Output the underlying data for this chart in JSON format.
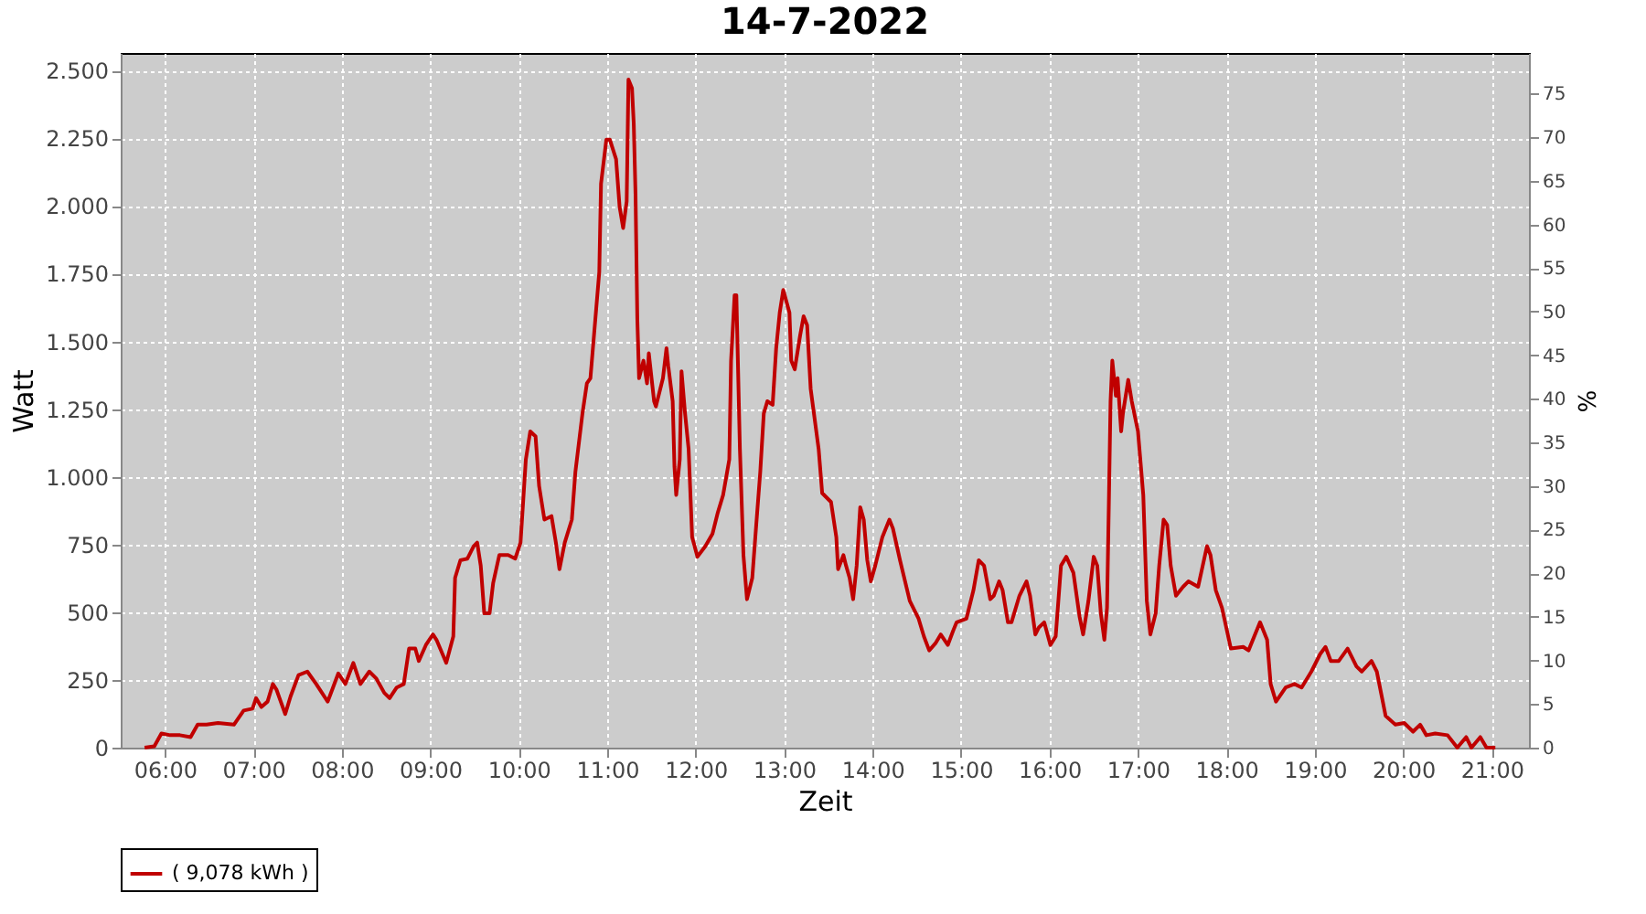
{
  "chart_data": {
    "type": "line",
    "title": "14-7-2022",
    "xlabel": "Zeit",
    "ylabel": "Watt",
    "y2label": "%",
    "xlim": [
      5.5,
      21.42
    ],
    "xticks": [
      {
        "value": 6,
        "label": "06:00"
      },
      {
        "value": 7,
        "label": "07:00"
      },
      {
        "value": 8,
        "label": "08:00"
      },
      {
        "value": 9,
        "label": "09:00"
      },
      {
        "value": 10,
        "label": "10:00"
      },
      {
        "value": 11,
        "label": "11:00"
      },
      {
        "value": 12,
        "label": "12:00"
      },
      {
        "value": 13,
        "label": "13:00"
      },
      {
        "value": 14,
        "label": "14:00"
      },
      {
        "value": 15,
        "label": "15:00"
      },
      {
        "value": 16,
        "label": "16:00"
      },
      {
        "value": 17,
        "label": "17:00"
      },
      {
        "value": 18,
        "label": "18:00"
      },
      {
        "value": 19,
        "label": "19:00"
      },
      {
        "value": 20,
        "label": "20:00"
      },
      {
        "value": 21,
        "label": "21:00"
      }
    ],
    "ylim": [
      0,
      2565
    ],
    "yticks": [
      0,
      {
        "value": 250,
        "label": "250"
      },
      {
        "value": 500,
        "label": "500"
      },
      {
        "value": 750,
        "label": "750"
      },
      {
        "value": 1000,
        "label": "1.000"
      },
      {
        "value": 1250,
        "label": "1.250"
      },
      {
        "value": 1500,
        "label": "1.500"
      },
      {
        "value": 1750,
        "label": "1.750"
      },
      {
        "value": 2000,
        "label": "2.000"
      },
      {
        "value": 2250,
        "label": "2.250"
      },
      {
        "value": 2500,
        "label": "2.500"
      }
    ],
    "y2lim": [
      0,
      79.66
    ],
    "y2ticks": [
      0,
      5,
      10,
      15,
      20,
      25,
      30,
      35,
      40,
      45,
      50,
      55,
      60,
      65,
      70,
      75
    ],
    "grid": true,
    "legend": "bottom",
    "marker": "none",
    "line_style": "solid",
    "series": [
      {
        "name": "( 9,078 kWh )",
        "color": "#c00000",
        "x": [
          5.77,
          5.88,
          5.96,
          6.06,
          6.17,
          6.29,
          6.37,
          6.47,
          6.6,
          6.78,
          6.89,
          6.99,
          7.03,
          7.09,
          7.16,
          7.22,
          7.26,
          7.36,
          7.42,
          7.51,
          7.61,
          7.71,
          7.84,
          7.9,
          7.96,
          8.04,
          8.13,
          8.21,
          8.31,
          8.39,
          8.48,
          8.54,
          8.62,
          8.7,
          8.76,
          8.83,
          8.87,
          8.95,
          9.03,
          9.07,
          9.18,
          9.26,
          9.28,
          9.34,
          9.42,
          9.49,
          9.53,
          9.57,
          9.61,
          9.67,
          9.71,
          9.78,
          9.88,
          9.96,
          10.02,
          10.08,
          10.13,
          10.19,
          10.23,
          10.29,
          10.37,
          10.42,
          10.46,
          10.52,
          10.6,
          10.64,
          10.72,
          10.77,
          10.81,
          10.85,
          10.91,
          10.93,
          10.99,
          11.03,
          11.1,
          11.14,
          11.18,
          11.22,
          11.24,
          11.28,
          11.3,
          11.32,
          11.34,
          11.36,
          11.41,
          11.45,
          11.47,
          11.53,
          11.55,
          11.63,
          11.67,
          11.69,
          11.74,
          11.76,
          11.78,
          11.82,
          11.84,
          11.88,
          11.92,
          11.96,
          12.02,
          12.11,
          12.19,
          12.25,
          12.31,
          12.38,
          12.4,
          12.44,
          12.46,
          12.5,
          12.54,
          12.58,
          12.64,
          12.68,
          12.73,
          12.77,
          12.81,
          12.87,
          12.91,
          12.95,
          12.99,
          13.06,
          13.08,
          13.12,
          13.18,
          13.22,
          13.26,
          13.3,
          13.39,
          13.43,
          13.53,
          13.59,
          13.61,
          13.67,
          13.7,
          13.74,
          13.78,
          13.82,
          13.86,
          13.9,
          13.94,
          13.98,
          14.03,
          14.11,
          14.19,
          14.23,
          14.31,
          14.42,
          14.52,
          14.58,
          14.64,
          14.71,
          14.77,
          14.85,
          14.91,
          14.95,
          15.06,
          15.14,
          15.2,
          15.26,
          15.33,
          15.37,
          15.43,
          15.47,
          15.53,
          15.57,
          15.66,
          15.74,
          15.78,
          15.84,
          15.88,
          15.94,
          16.01,
          16.07,
          16.13,
          16.19,
          16.27,
          16.34,
          16.38,
          16.44,
          16.5,
          16.54,
          16.58,
          16.62,
          16.65,
          16.67,
          16.69,
          16.71,
          16.75,
          16.77,
          16.81,
          16.83,
          16.89,
          16.93,
          17.0,
          17.06,
          17.1,
          17.14,
          17.2,
          17.24,
          17.29,
          17.33,
          17.37,
          17.43,
          17.51,
          17.57,
          17.68,
          17.78,
          17.82,
          17.88,
          17.95,
          18.05,
          18.19,
          18.25,
          18.34,
          18.38,
          18.46,
          18.5,
          18.56,
          18.67,
          18.77,
          18.85,
          18.96,
          19.06,
          19.12,
          19.18,
          19.27,
          19.37,
          19.47,
          19.53,
          19.64,
          19.7,
          19.8,
          19.91,
          20.01,
          20.11,
          20.19,
          20.26,
          20.36,
          20.5,
          20.61,
          20.71,
          20.77,
          20.87,
          20.94,
          21.04
        ],
        "values": [
          0,
          5,
          52,
          46,
          46,
          39,
          85,
          85,
          91,
          85,
          137,
          144,
          183,
          150,
          170,
          235,
          215,
          124,
          189,
          268,
          281,
          235,
          170,
          222,
          274,
          235,
          313,
          235,
          281,
          255,
          202,
          183,
          222,
          235,
          366,
          366,
          320,
          379,
          418,
          398,
          313,
          411,
          627,
          692,
          698,
          744,
          757,
          672,
          496,
          496,
          607,
          711,
          711,
          698,
          757,
          1064,
          1168,
          1149,
          966,
          842,
          855,
          757,
          659,
          757,
          842,
          1018,
          1234,
          1345,
          1364,
          1521,
          1756,
          2082,
          2245,
          2245,
          2173,
          1997,
          1919,
          2017,
          2467,
          2435,
          2304,
          2043,
          1586,
          1364,
          1429,
          1345,
          1456,
          1279,
          1260,
          1364,
          1475,
          1410,
          1279,
          1038,
          933,
          1064,
          1390,
          1234,
          1103,
          777,
          705,
          744,
          790,
          868,
          933,
          1064,
          1429,
          1671,
          1671,
          1103,
          711,
          548,
          627,
          803,
          1018,
          1234,
          1279,
          1266,
          1475,
          1606,
          1690,
          1606,
          1429,
          1397,
          1521,
          1593,
          1560,
          1325,
          1103,
          940,
          907,
          777,
          659,
          711,
          672,
          627,
          548,
          672,
          888,
          842,
          692,
          614,
          672,
          777,
          842,
          809,
          692,
          542,
          476,
          411,
          359,
          385,
          418,
          379,
          431,
          463,
          476,
          581,
          692,
          672,
          548,
          561,
          614,
          581,
          463,
          463,
          561,
          614,
          561,
          418,
          444,
          463,
          379,
          411,
          672,
          705,
          646,
          483,
          418,
          542,
          705,
          672,
          496,
          398,
          516,
          888,
          1279,
          1429,
          1299,
          1364,
          1168,
          1234,
          1358,
          1279,
          1168,
          933,
          542,
          418,
          496,
          672,
          842,
          822,
          672,
          561,
          594,
          614,
          594,
          744,
          711,
          581,
          516,
          366,
          372,
          359,
          431,
          463,
          398,
          235,
          170,
          222,
          235,
          222,
          281,
          346,
          372,
          320,
          320,
          366,
          300,
          281,
          320,
          281,
          117,
          85,
          91,
          59,
          85,
          46,
          52,
          46,
          0,
          39,
          0,
          39,
          0,
          0
        ]
      }
    ]
  }
}
